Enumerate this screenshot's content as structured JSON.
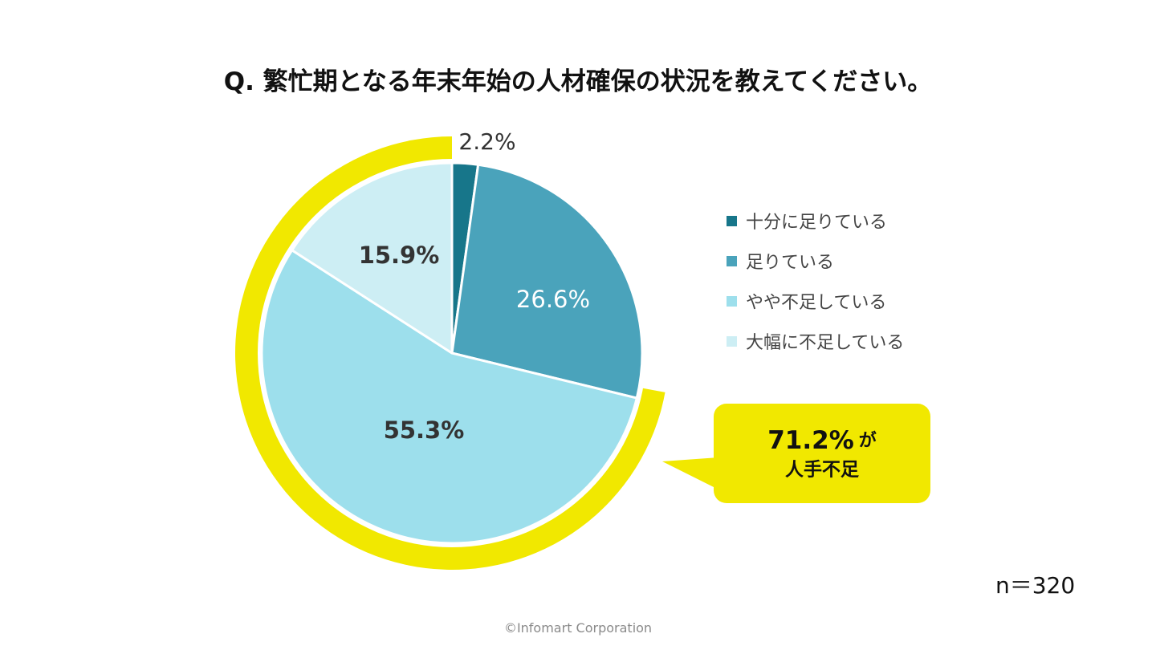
{
  "header": {
    "title": "Q. 繁忙期となる年末年始の人材確保の状況を教えてください。"
  },
  "chart_data": {
    "type": "pie",
    "title": "Q. 繁忙期となる年末年始の人材確保の状況を教えてください。",
    "slices": [
      {
        "label": "十分に足りている",
        "value": 2.2,
        "display": "2.2%",
        "color": "#17768a",
        "label_color": "#333333",
        "label_bold": false
      },
      {
        "label": "足りている",
        "value": 26.6,
        "display": "26.6%",
        "color": "#4aa3bb",
        "label_color": "#ffffff",
        "label_bold": false
      },
      {
        "label": "やや不足している",
        "value": 55.3,
        "display": "55.3%",
        "color": "#9ddfec",
        "label_color": "#333333",
        "label_bold": true
      },
      {
        "label": "大幅に不足している",
        "value": 15.9,
        "display": "15.9%",
        "color": "#cdeef4",
        "label_color": "#333333",
        "label_bold": true
      }
    ],
    "legend_position": "right",
    "highlight": {
      "color": "#f1e800",
      "value_text": "71.2%",
      "suffix_text": "が",
      "line2_text": "人手不足"
    },
    "sample_size": "n＝320"
  },
  "footer": {
    "copyright": "©Infomart Corporation"
  }
}
